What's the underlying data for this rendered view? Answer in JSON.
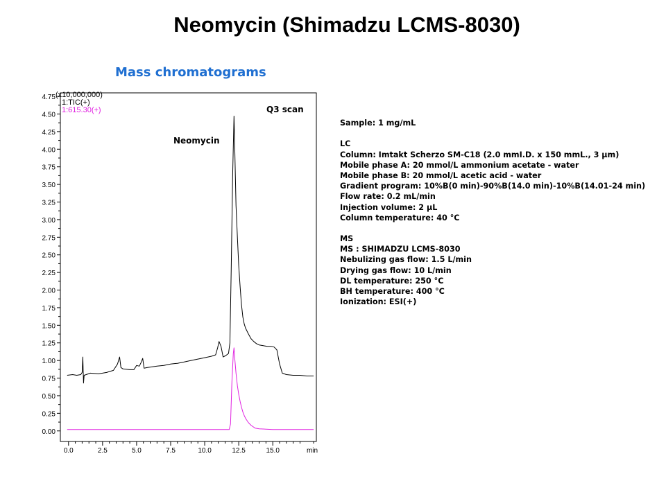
{
  "title": "Neomycin (Shimadzu LCMS-8030)",
  "subtitle": "Mass chromatograms",
  "chart_data": {
    "type": "line",
    "y_multiplier_label": "(x10,000,000)",
    "xlim": [
      -0.6,
      18.2
    ],
    "ylim": [
      -0.15,
      4.8
    ],
    "x_ticks": [
      0.0,
      2.5,
      5.0,
      7.5,
      10.0,
      12.5,
      15.0
    ],
    "x_tick_labels": [
      "0.0",
      "2.5",
      "5.0",
      "7.5",
      "10.0",
      "12.5",
      "15.0"
    ],
    "x_unit_label": "min",
    "y_ticks": [
      0.0,
      0.25,
      0.5,
      0.75,
      1.0,
      1.25,
      1.5,
      1.75,
      2.0,
      2.25,
      2.5,
      2.75,
      3.0,
      3.25,
      3.5,
      3.75,
      4.0,
      4.25,
      4.5,
      4.75
    ],
    "y_tick_labels": [
      "0.00",
      "0.25",
      "0.50",
      "0.75",
      "1.00",
      "1.25",
      "1.50",
      "1.75",
      "2.00",
      "2.25",
      "2.50",
      "2.75",
      "3.00",
      "3.25",
      "3.50",
      "3.75",
      "4.00",
      "4.25",
      "4.50",
      "4.75"
    ],
    "annotations": {
      "scan_label": "Q3 scan",
      "peak_label": "Neomycin"
    },
    "series": [
      {
        "name": "1:TIC(+)",
        "color": "#000000",
        "points": [
          [
            -0.1,
            0.79
          ],
          [
            0.3,
            0.8
          ],
          [
            0.6,
            0.79
          ],
          [
            0.9,
            0.8
          ],
          [
            1.0,
            0.83
          ],
          [
            1.05,
            1.05
          ],
          [
            1.1,
            0.68
          ],
          [
            1.15,
            0.79
          ],
          [
            1.6,
            0.82
          ],
          [
            2.2,
            0.81
          ],
          [
            2.8,
            0.83
          ],
          [
            3.3,
            0.86
          ],
          [
            3.6,
            0.95
          ],
          [
            3.75,
            1.05
          ],
          [
            3.85,
            0.9
          ],
          [
            4.0,
            0.88
          ],
          [
            4.5,
            0.87
          ],
          [
            4.8,
            0.87
          ],
          [
            5.0,
            0.93
          ],
          [
            5.2,
            0.92
          ],
          [
            5.35,
            0.98
          ],
          [
            5.45,
            1.03
          ],
          [
            5.55,
            0.89
          ],
          [
            5.8,
            0.9
          ],
          [
            6.5,
            0.92
          ],
          [
            7.0,
            0.93
          ],
          [
            7.5,
            0.95
          ],
          [
            8.0,
            0.96
          ],
          [
            8.5,
            0.98
          ],
          [
            9.0,
            1.0
          ],
          [
            9.5,
            1.02
          ],
          [
            10.0,
            1.04
          ],
          [
            10.5,
            1.06
          ],
          [
            10.8,
            1.08
          ],
          [
            10.95,
            1.18
          ],
          [
            11.05,
            1.27
          ],
          [
            11.2,
            1.2
          ],
          [
            11.35,
            1.05
          ],
          [
            11.55,
            1.07
          ],
          [
            11.75,
            1.1
          ],
          [
            11.85,
            1.25
          ],
          [
            11.95,
            2.3
          ],
          [
            12.05,
            3.6
          ],
          [
            12.15,
            4.47
          ],
          [
            12.2,
            4.1
          ],
          [
            12.3,
            3.2
          ],
          [
            12.4,
            2.75
          ],
          [
            12.5,
            2.35
          ],
          [
            12.6,
            2.05
          ],
          [
            12.7,
            1.8
          ],
          [
            12.8,
            1.62
          ],
          [
            12.9,
            1.52
          ],
          [
            13.0,
            1.46
          ],
          [
            13.2,
            1.38
          ],
          [
            13.4,
            1.31
          ],
          [
            13.6,
            1.27
          ],
          [
            13.8,
            1.24
          ],
          [
            14.0,
            1.22
          ],
          [
            14.3,
            1.21
          ],
          [
            14.6,
            1.2
          ],
          [
            14.9,
            1.2
          ],
          [
            15.1,
            1.19
          ],
          [
            15.3,
            1.15
          ],
          [
            15.5,
            0.95
          ],
          [
            15.7,
            0.82
          ],
          [
            16.0,
            0.8
          ],
          [
            16.5,
            0.79
          ],
          [
            17.0,
            0.79
          ],
          [
            17.5,
            0.78
          ],
          [
            18.0,
            0.78
          ]
        ]
      },
      {
        "name": "1:615.30(+)",
        "color": "#e020e0",
        "points": [
          [
            -0.1,
            0.02
          ],
          [
            6.0,
            0.02
          ],
          [
            11.0,
            0.02
          ],
          [
            11.8,
            0.02
          ],
          [
            11.9,
            0.1
          ],
          [
            12.0,
            0.7
          ],
          [
            12.1,
            1.1
          ],
          [
            12.15,
            1.18
          ],
          [
            12.2,
            1.05
          ],
          [
            12.3,
            0.82
          ],
          [
            12.4,
            0.64
          ],
          [
            12.5,
            0.52
          ],
          [
            12.6,
            0.42
          ],
          [
            12.7,
            0.34
          ],
          [
            12.8,
            0.27
          ],
          [
            12.9,
            0.22
          ],
          [
            13.0,
            0.18
          ],
          [
            13.2,
            0.12
          ],
          [
            13.4,
            0.08
          ],
          [
            13.7,
            0.04
          ],
          [
            14.0,
            0.03
          ],
          [
            15.0,
            0.02
          ],
          [
            18.0,
            0.02
          ]
        ]
      }
    ]
  },
  "conditions": {
    "sample": "Sample: 1 mg/mL",
    "lc_header": "LC",
    "column": "Column: Imtakt Scherzo SM-C18 (2.0 mmI.D. x 150 mmL., 3 µm)",
    "mobile_a": "Mobile phase A: 20 mmol/L ammonium acetate - water",
    "mobile_b": "Mobile phase B: 20 mmol/L acetic acid - water",
    "gradient": "Gradient program: 10%B(0 min)-90%B(14.0 min)-10%B(14.01-24 min)",
    "flow_rate": "Flow rate: 0.2 mL/min",
    "injection_volume": "Injection volume: 2 µL",
    "column_temperature": "Column temperature: 40 °C",
    "ms_header": "MS",
    "ms_instrument": "MS : SHIMADZU LCMS-8030",
    "nebulizing_gas": "Nebulizing gas flow: 1.5 L/min",
    "drying_gas": "Drying gas flow: 10 L/min",
    "dl_temperature": "DL temperature: 250 °C",
    "bh_temperature": "BH temperature: 400 °C",
    "ionization": "Ionization: ESI(+)"
  }
}
